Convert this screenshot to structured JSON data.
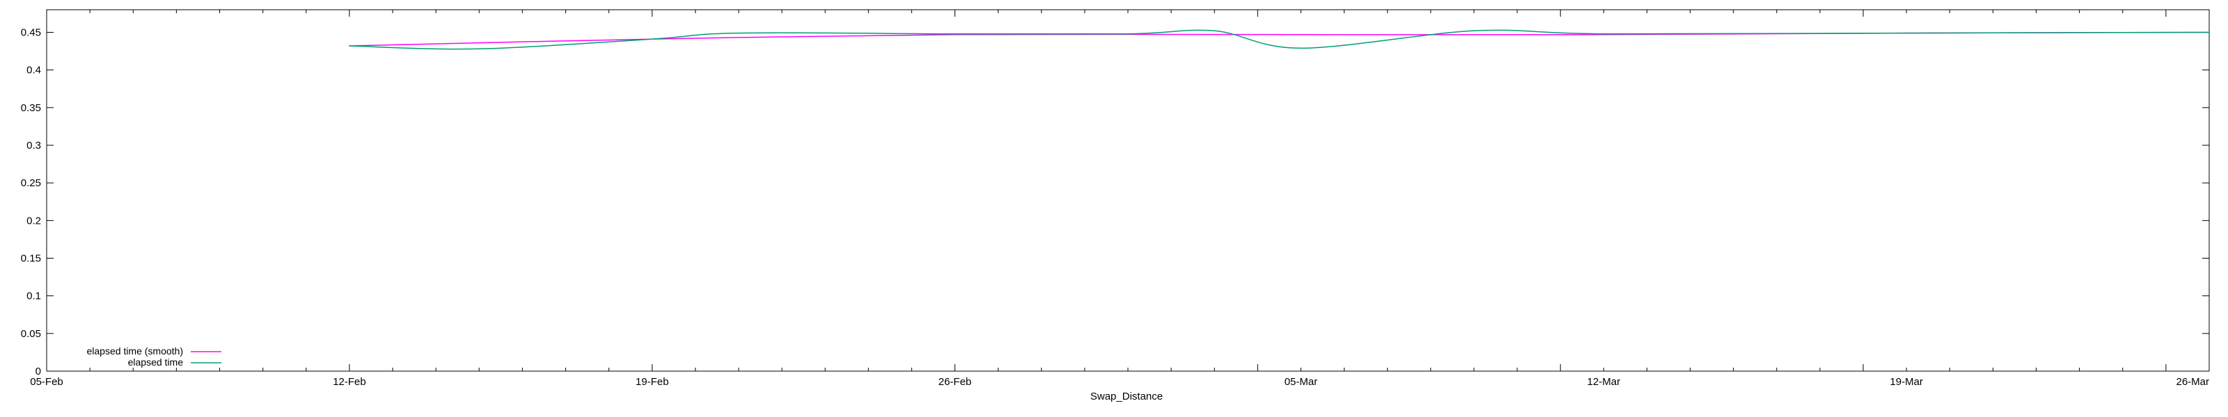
{
  "chart_data": {
    "type": "line",
    "xlabel": "Swap_Distance",
    "ylabel": "",
    "x_tick_labels": [
      "05-Feb",
      "12-Feb",
      "19-Feb",
      "26-Feb",
      "05-Mar",
      "12-Mar",
      "19-Mar",
      "26-Mar"
    ],
    "x_tick_dates": [
      "2024-02-05",
      "2024-02-12",
      "2024-02-19",
      "2024-02-26",
      "2024-03-05",
      "2024-03-12",
      "2024-03-19",
      "2024-03-26"
    ],
    "xlim": [
      "2024-02-05",
      "2024-03-26"
    ],
    "ylim": [
      0,
      0.48
    ],
    "y_ticks": [
      0,
      0.05,
      0.1,
      0.15,
      0.2,
      0.25,
      0.3,
      0.35,
      0.4,
      0.45
    ],
    "y_tick_labels": [
      "0",
      "0.05",
      "0.1",
      "0.15",
      "0.2",
      "0.25",
      "0.3",
      "0.35",
      "0.4",
      "0.45"
    ],
    "grid": false,
    "legend_position": "bottom-left",
    "colors": {
      "smooth": "#ff00ff",
      "raw": "#009e73",
      "overlap": "#0000cc"
    },
    "series": [
      {
        "name": "elapsed time (smooth)",
        "x": [
          "2024-02-12",
          "2024-02-19",
          "2024-02-26",
          "2024-03-05",
          "2024-03-12",
          "2024-03-19",
          "2024-03-26"
        ],
        "y": [
          0.432,
          0.441,
          0.447,
          0.447,
          0.447,
          0.449,
          0.45
        ]
      },
      {
        "name": "elapsed time",
        "x": [
          "2024-02-12",
          "2024-02-15",
          "2024-02-19",
          "2024-02-21",
          "2024-02-26",
          "2024-03-01",
          "2024-03-03",
          "2024-03-05",
          "2024-03-09",
          "2024-03-12",
          "2024-03-19",
          "2024-03-26"
        ],
        "y": [
          0.432,
          0.428,
          0.441,
          0.449,
          0.448,
          0.448,
          0.452,
          0.429,
          0.452,
          0.448,
          0.449,
          0.45
        ]
      }
    ]
  }
}
